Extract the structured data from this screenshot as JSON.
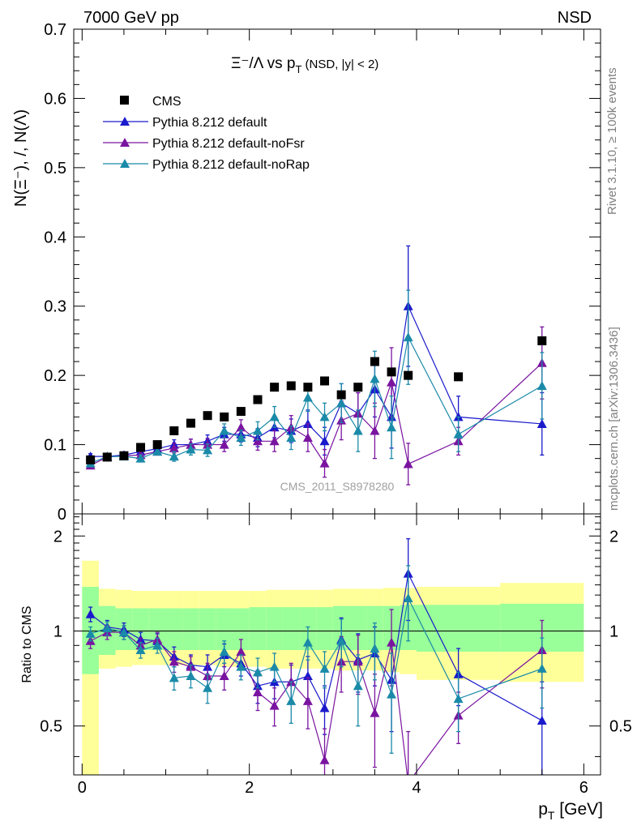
{
  "header": {
    "left": "7000 GeV pp",
    "right": "NSD"
  },
  "side_labels": {
    "rivet": "Rivet 3.1.10, ≥ 100k events",
    "mcplots": "mcplots.cern.ch [arXiv:1306.3436]"
  },
  "watermark": "CMS_2011_S8978280",
  "colors": {
    "cms": "#000000",
    "default": "#1a1acc",
    "noFsr": "#7a14a0",
    "noRap": "#1a8aa8",
    "band_inner": "#99ff99",
    "band_outer": "#ffff99"
  },
  "chart_data": [
    {
      "type": "scatter",
      "panel": "main",
      "title": {
        "main": "Ξ⁻/Λ  vs p",
        "sub": "T",
        "suffix": " (NSD, |y| < 2)"
      },
      "ylabel": "N(Ξ⁻), /, N(Λ)",
      "xlim": [
        -0.1,
        6.2
      ],
      "ylim": [
        0,
        0.7
      ],
      "yticks": [
        "0",
        "0.1",
        "0.2",
        "0.3",
        "0.4",
        "0.5",
        "0.6",
        "0.7"
      ],
      "legend": {
        "position": "top-left",
        "entries": [
          "CMS",
          "Pythia 8.212 default",
          "Pythia 8.212 default-noFsr",
          "Pythia 8.212 default-noRap"
        ]
      },
      "series": [
        {
          "name": "CMS",
          "key": "cms",
          "marker": "square",
          "x": [
            0.1,
            0.3,
            0.5,
            0.7,
            0.9,
            1.1,
            1.3,
            1.5,
            1.7,
            1.9,
            2.1,
            2.3,
            2.5,
            2.7,
            2.9,
            3.1,
            3.3,
            3.5,
            3.7,
            3.9,
            4.5,
            5.5
          ],
          "y": [
            0.078,
            0.082,
            0.084,
            0.096,
            0.1,
            0.12,
            0.131,
            0.142,
            0.14,
            0.148,
            0.165,
            0.183,
            0.185,
            0.183,
            0.192,
            0.172,
            0.183,
            0.22,
            0.205,
            0.2,
            0.198,
            0.25
          ]
        },
        {
          "name": "Pythia 8.212 default",
          "key": "default",
          "marker": "triangle",
          "x": [
            0.1,
            0.3,
            0.5,
            0.7,
            0.9,
            1.1,
            1.3,
            1.5,
            1.7,
            1.9,
            2.1,
            2.3,
            2.5,
            2.7,
            2.9,
            3.1,
            3.3,
            3.5,
            3.7,
            3.9,
            4.5,
            5.5
          ],
          "y": [
            0.083,
            0.083,
            0.085,
            0.09,
            0.094,
            0.1,
            0.1,
            0.105,
            0.115,
            0.115,
            0.11,
            0.125,
            0.12,
            0.13,
            0.105,
            0.16,
            0.145,
            0.18,
            0.14,
            0.3,
            0.14,
            0.13
          ],
          "err": [
            0.004,
            0.004,
            0.004,
            0.005,
            0.005,
            0.007,
            0.008,
            0.009,
            0.01,
            0.011,
            0.013,
            0.015,
            0.017,
            0.02,
            0.02,
            0.028,
            0.03,
            0.04,
            0.045,
            0.087,
            0.03,
            0.045
          ]
        },
        {
          "name": "Pythia 8.212 default-noFsr",
          "key": "noFsr",
          "marker": "triangle",
          "x": [
            0.1,
            0.3,
            0.5,
            0.7,
            0.9,
            1.1,
            1.3,
            1.5,
            1.7,
            1.9,
            2.1,
            2.3,
            2.5,
            2.7,
            2.9,
            3.1,
            3.3,
            3.5,
            3.7,
            3.9,
            4.5,
            5.5
          ],
          "y": [
            0.07,
            0.082,
            0.084,
            0.085,
            0.09,
            0.095,
            0.1,
            0.1,
            0.1,
            0.125,
            0.105,
            0.105,
            0.125,
            0.11,
            0.073,
            0.135,
            0.145,
            0.12,
            0.19,
            0.072,
            0.105,
            0.218
          ],
          "err": [
            0.004,
            0.004,
            0.004,
            0.005,
            0.005,
            0.007,
            0.008,
            0.009,
            0.01,
            0.011,
            0.013,
            0.015,
            0.017,
            0.02,
            0.02,
            0.028,
            0.03,
            0.04,
            0.05,
            0.03,
            0.02,
            0.052
          ]
        },
        {
          "name": "Pythia 8.212 default-noRap",
          "key": "noRap",
          "marker": "triangle",
          "x": [
            0.1,
            0.3,
            0.5,
            0.7,
            0.9,
            1.1,
            1.3,
            1.5,
            1.7,
            1.9,
            2.1,
            2.3,
            2.5,
            2.7,
            2.9,
            3.1,
            3.3,
            3.5,
            3.7,
            3.9,
            4.5,
            5.5
          ],
          "y": [
            0.073,
            0.083,
            0.083,
            0.08,
            0.09,
            0.083,
            0.093,
            0.092,
            0.12,
            0.11,
            0.12,
            0.14,
            0.11,
            0.168,
            0.14,
            0.16,
            0.12,
            0.195,
            0.125,
            0.255,
            0.115,
            0.185
          ],
          "err": [
            0.004,
            0.004,
            0.004,
            0.005,
            0.005,
            0.007,
            0.008,
            0.009,
            0.01,
            0.011,
            0.013,
            0.015,
            0.017,
            0.02,
            0.02,
            0.028,
            0.03,
            0.04,
            0.045,
            0.068,
            0.025,
            0.048
          ]
        }
      ]
    },
    {
      "type": "scatter",
      "panel": "ratio",
      "ylabel": "Ratio to CMS",
      "xlabel": {
        "main": "p",
        "sub": "T",
        "suffix": " [GeV]"
      },
      "xlim": [
        -0.1,
        6.2
      ],
      "ylim": [
        0.35,
        2.35
      ],
      "xticks": [
        "0",
        "2",
        "4",
        "6"
      ],
      "yticks": [
        "0.5",
        "1",
        "2"
      ],
      "bands": {
        "x_edges": [
          0.0,
          0.2,
          0.4,
          0.6,
          0.8,
          1.0,
          1.2,
          1.4,
          1.6,
          1.8,
          2.0,
          2.2,
          2.4,
          2.6,
          2.8,
          3.0,
          3.2,
          3.4,
          3.6,
          3.8,
          4.0,
          5.0,
          6.0
        ],
        "inner_lo": [
          0.73,
          0.84,
          0.87,
          0.87,
          0.87,
          0.87,
          0.87,
          0.87,
          0.87,
          0.87,
          0.87,
          0.87,
          0.87,
          0.87,
          0.87,
          0.87,
          0.87,
          0.87,
          0.87,
          0.87,
          0.86,
          0.86
        ],
        "inner_hi": [
          1.38,
          1.2,
          1.18,
          1.18,
          1.18,
          1.18,
          1.18,
          1.18,
          1.18,
          1.18,
          1.19,
          1.19,
          1.19,
          1.19,
          1.19,
          1.2,
          1.2,
          1.2,
          1.2,
          1.21,
          1.21,
          1.22
        ],
        "outer_lo": [
          0.25,
          0.76,
          0.77,
          0.78,
          0.78,
          0.78,
          0.78,
          0.78,
          0.77,
          0.77,
          0.77,
          0.76,
          0.76,
          0.76,
          0.76,
          0.75,
          0.75,
          0.75,
          0.74,
          0.73,
          0.7,
          0.69
        ],
        "outer_hi": [
          1.67,
          1.36,
          1.35,
          1.34,
          1.34,
          1.34,
          1.34,
          1.34,
          1.34,
          1.34,
          1.34,
          1.35,
          1.35,
          1.35,
          1.35,
          1.36,
          1.36,
          1.36,
          1.37,
          1.37,
          1.38,
          1.42
        ]
      },
      "series": [
        {
          "name": "Pythia 8.212 default",
          "key": "default",
          "x": [
            0.1,
            0.3,
            0.5,
            0.7,
            0.9,
            1.1,
            1.3,
            1.5,
            1.7,
            1.9,
            2.1,
            2.3,
            2.5,
            2.7,
            2.9,
            3.1,
            3.3,
            3.5,
            3.7,
            3.9,
            4.5,
            5.5
          ],
          "y": [
            1.13,
            1.03,
            1.01,
            0.94,
            0.93,
            0.83,
            0.78,
            0.77,
            0.84,
            0.79,
            0.67,
            0.69,
            0.69,
            0.72,
            0.57,
            0.94,
            0.81,
            0.85,
            0.7,
            1.52,
            0.73,
            0.52
          ],
          "err": [
            0.06,
            0.05,
            0.05,
            0.05,
            0.05,
            0.06,
            0.06,
            0.07,
            0.07,
            0.07,
            0.08,
            0.08,
            0.09,
            0.11,
            0.1,
            0.16,
            0.17,
            0.18,
            0.22,
            0.44,
            0.15,
            0.17
          ]
        },
        {
          "name": "Pythia 8.212 default-noFsr",
          "key": "noFsr",
          "x": [
            0.1,
            0.3,
            0.5,
            0.7,
            0.9,
            1.1,
            1.3,
            1.5,
            1.7,
            1.9,
            2.1,
            2.3,
            2.5,
            2.7,
            2.9,
            3.1,
            3.3,
            3.5,
            3.7,
            3.9,
            4.5,
            5.5
          ],
          "y": [
            0.93,
            0.99,
            0.99,
            0.9,
            0.94,
            0.8,
            0.77,
            0.72,
            0.72,
            0.86,
            0.64,
            0.58,
            0.69,
            0.6,
            0.39,
            0.8,
            0.8,
            0.55,
            0.92,
            0.33,
            0.54,
            0.87
          ],
          "err": [
            0.05,
            0.05,
            0.05,
            0.05,
            0.05,
            0.06,
            0.06,
            0.07,
            0.07,
            0.08,
            0.08,
            0.08,
            0.1,
            0.11,
            0.1,
            0.16,
            0.17,
            0.18,
            0.25,
            0.15,
            0.1,
            0.21
          ]
        },
        {
          "name": "Pythia 8.212 default-noRap",
          "key": "noRap",
          "x": [
            0.1,
            0.3,
            0.5,
            0.7,
            0.9,
            1.1,
            1.3,
            1.5,
            1.7,
            1.9,
            2.1,
            2.3,
            2.5,
            2.7,
            2.9,
            3.1,
            3.3,
            3.5,
            3.7,
            3.9,
            4.5,
            5.5
          ],
          "y": [
            0.98,
            1.02,
            0.99,
            0.87,
            0.9,
            0.71,
            0.72,
            0.66,
            0.86,
            0.77,
            0.74,
            0.77,
            0.6,
            0.92,
            0.76,
            0.93,
            0.67,
            0.88,
            0.63,
            1.27,
            0.61,
            0.76
          ],
          "err": [
            0.05,
            0.05,
            0.05,
            0.05,
            0.05,
            0.06,
            0.06,
            0.07,
            0.07,
            0.07,
            0.08,
            0.08,
            0.09,
            0.11,
            0.1,
            0.16,
            0.17,
            0.18,
            0.22,
            0.34,
            0.13,
            0.19
          ]
        }
      ]
    }
  ]
}
